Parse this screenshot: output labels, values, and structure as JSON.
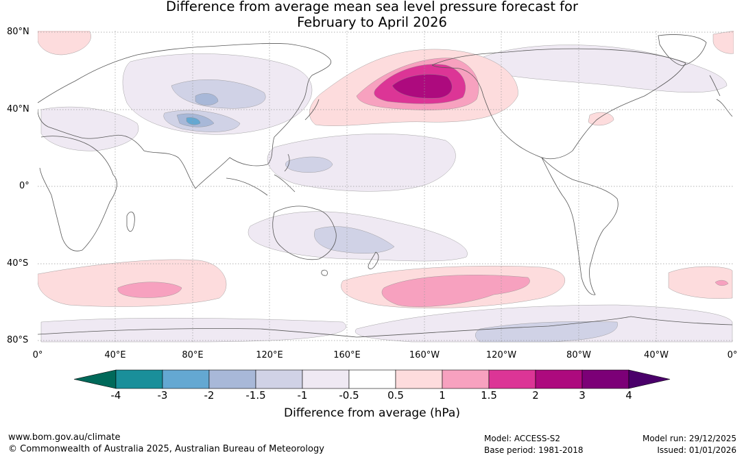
{
  "title": {
    "line1": "Difference from average mean sea level pressure forecast for",
    "line2": "February to April 2026"
  },
  "latitude_labels": [
    "80°N",
    "40°N",
    "0°",
    "40°S",
    "80°S"
  ],
  "longitude_labels": [
    "0°",
    "40°E",
    "80°E",
    "120°E",
    "160°E",
    "160°W",
    "120°W",
    "80°W",
    "40°W",
    "0°"
  ],
  "colorbar": {
    "title": "Difference from average (hPa)",
    "tick_labels": [
      "-4",
      "-3",
      "-2",
      "-1.5",
      "-1",
      "-0.5",
      "0.5",
      "1",
      "1.5",
      "2",
      "3",
      "4"
    ],
    "colors": {
      "below_min": "#00695a",
      "bins": [
        "#1a8f9a",
        "#64a8d2",
        "#a8b8d8",
        "#d0d2e6",
        "#efe9f3",
        "#ffffff",
        "#fddcdd",
        "#f7a1bf",
        "#dc3596",
        "#ad0a7e",
        "#7c0077"
      ],
      "above_max": "#4a006a"
    }
  },
  "footer": {
    "website": "www.bom.gov.au/climate",
    "copyright": "© Commonwealth of Australia 2025, Australian Bureau of Meteorology",
    "model": "Model: ACCESS-S2",
    "base_period": "Base period: 1981-2018",
    "model_run": "Model run: 29/12/2025",
    "issued": "Issued: 01/01/2026"
  }
}
